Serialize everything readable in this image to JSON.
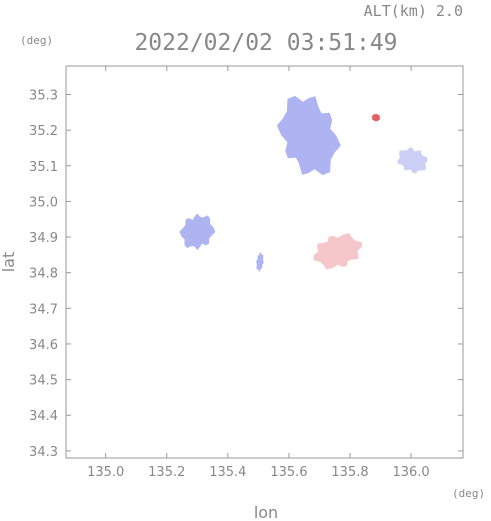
{
  "chart_data": {
    "type": "heatmap",
    "title": "2022/02/02 03:51:49",
    "subtitle": "ALT(km) 2.0",
    "xlabel": "lon",
    "ylabel": "lat",
    "x_unit": "(deg)",
    "y_unit": "(deg)",
    "xlim": [
      134.87,
      136.17
    ],
    "ylim": [
      34.28,
      35.38
    ],
    "x_ticks": [
      "135.0",
      "135.2",
      "135.4",
      "135.6",
      "135.8",
      "136.0"
    ],
    "y_ticks": [
      "35.3",
      "35.2",
      "35.1",
      "35.0",
      "34.9",
      "34.8",
      "34.7",
      "34.6",
      "34.5",
      "34.4",
      "34.3"
    ],
    "grid": false,
    "colors": {
      "negative": "#aab0f0",
      "negative_light": "#c8ccf4",
      "positive": "#f4c4c8",
      "strong_positive": "#e05a5a",
      "axis": "#999999"
    },
    "regions": [
      {
        "lon": [
          135.55,
          135.78
        ],
        "lat": [
          35.05,
          35.32
        ],
        "sign": "negative"
      },
      {
        "lon": [
          135.95,
          136.06
        ],
        "lat": [
          35.07,
          35.16
        ],
        "sign": "negative_light"
      },
      {
        "lon": [
          135.87,
          135.9
        ],
        "lat": [
          35.22,
          35.25
        ],
        "sign": "strong_positive"
      },
      {
        "lon": [
          135.24,
          135.36
        ],
        "lat": [
          34.85,
          34.98
        ],
        "sign": "negative"
      },
      {
        "lon": [
          135.67,
          135.85
        ],
        "lat": [
          34.8,
          34.92
        ],
        "sign": "positive"
      },
      {
        "lon": [
          135.49,
          135.52
        ],
        "lat": [
          34.8,
          34.86
        ],
        "sign": "negative"
      }
    ]
  }
}
